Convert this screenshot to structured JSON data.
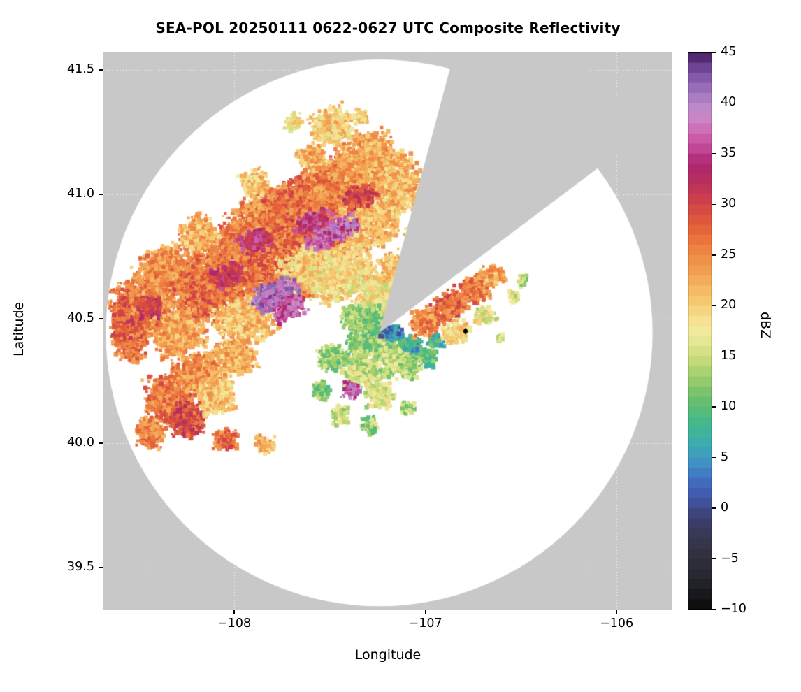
{
  "title": "SEA-POL 20250111 0622-0627 UTC Composite Reflectivity",
  "axes": {
    "xlabel": "Longitude",
    "ylabel": "Latitude",
    "x_ticks": [
      {
        "label": "−108",
        "lon": -108
      },
      {
        "label": "−107",
        "lon": -107
      },
      {
        "label": "−106",
        "lon": -106
      }
    ],
    "y_ticks": [
      {
        "label": "41.5",
        "lat": 41.5
      },
      {
        "label": "41.0",
        "lat": 41.0
      },
      {
        "label": "40.5",
        "lat": 40.5
      },
      {
        "label": "40.0",
        "lat": 40.0
      },
      {
        "label": "39.5",
        "lat": 39.5
      }
    ]
  },
  "colorbar": {
    "label": "dBZ",
    "range": [
      -10,
      45
    ],
    "ticks": [
      {
        "label": "45",
        "value": 45
      },
      {
        "label": "40",
        "value": 40
      },
      {
        "label": "35",
        "value": 35
      },
      {
        "label": "30",
        "value": 30
      },
      {
        "label": "25",
        "value": 25
      },
      {
        "label": "20",
        "value": 20
      },
      {
        "label": "15",
        "value": 15
      },
      {
        "label": "10",
        "value": 10
      },
      {
        "label": "5",
        "value": 5
      },
      {
        "label": "0",
        "value": 0
      },
      {
        "label": "−5",
        "value": -5
      },
      {
        "label": "−10",
        "value": -10
      }
    ],
    "colormap_stops": [
      [
        -10,
        "#0a0a0a"
      ],
      [
        -7,
        "#26262e"
      ],
      [
        -4,
        "#333344"
      ],
      [
        -1,
        "#3c3f6e"
      ],
      [
        1,
        "#4256a8"
      ],
      [
        3,
        "#4173c2"
      ],
      [
        5,
        "#3f9bc4"
      ],
      [
        7,
        "#3cb2a4"
      ],
      [
        9,
        "#4bba81"
      ],
      [
        11,
        "#6fc16b"
      ],
      [
        13,
        "#a0ce6c"
      ],
      [
        15,
        "#cdde7c"
      ],
      [
        17,
        "#edea9d"
      ],
      [
        18,
        "#f4e79a"
      ],
      [
        19,
        "#f6da88"
      ],
      [
        21,
        "#f6c167"
      ],
      [
        23,
        "#f3a556"
      ],
      [
        25,
        "#ef8a45"
      ],
      [
        27,
        "#e96c3a"
      ],
      [
        29,
        "#da4f3d"
      ],
      [
        31,
        "#c63a51"
      ],
      [
        33,
        "#b02a64"
      ],
      [
        34,
        "#ad2570"
      ],
      [
        35,
        "#bd3b8d"
      ],
      [
        37,
        "#cf66b2"
      ],
      [
        39,
        "#c88fcb"
      ],
      [
        41,
        "#a077c0"
      ],
      [
        43,
        "#7b4fa4"
      ],
      [
        45,
        "#451e61"
      ]
    ]
  },
  "chart_data": {
    "type": "heatmap",
    "description": "Radar composite reflectivity PPI on a latitude/longitude map. White disc is the radar coverage circle on a gray background; a gray no-data sector (wedge) extends from the radar center toward the north-northeast. Precipitation echoes (20-43 dBZ band) cover the northwest half of the domain with embedded high-reflectivity streaks; weak green/teal echoes lie near the radar; a secondary echo band extends east-northeast of the radar. A small black diamond marks a site east of the radar.",
    "xlim": [
      -108.684,
      -105.708
    ],
    "ylim": [
      39.331,
      41.57
    ],
    "background_color": "#c8c8c8",
    "coverage_color": "#ffffff",
    "gridline_color": "rgba(255,255,255,0.95)",
    "radar": {
      "lon": -107.2416,
      "lat": 40.443,
      "radius_deg_lon": 1.43
    },
    "missing_sector": {
      "from_azimuth_deg": 15,
      "to_azimuth_deg": 53
    },
    "marker": {
      "lon": -106.79,
      "lat": 40.45,
      "shape": "diamond",
      "color": "#000000"
    },
    "echoes": [
      {
        "lon": -108.5,
        "lat": 40.55,
        "rx": 0.17,
        "ry": 0.13,
        "dbz": 26,
        "ang": 20
      },
      {
        "lon": -108.35,
        "lat": 40.68,
        "rx": 0.18,
        "ry": 0.13,
        "dbz": 24,
        "ang": 20
      },
      {
        "lon": -108.15,
        "lat": 40.62,
        "rx": 0.2,
        "ry": 0.14,
        "dbz": 27,
        "ang": 20
      },
      {
        "lon": -108.0,
        "lat": 40.75,
        "rx": 0.22,
        "ry": 0.15,
        "dbz": 26,
        "ang": 25
      },
      {
        "lon": -107.85,
        "lat": 40.88,
        "rx": 0.22,
        "ry": 0.14,
        "dbz": 25,
        "ang": 25
      },
      {
        "lon": -107.65,
        "lat": 40.95,
        "rx": 0.22,
        "ry": 0.14,
        "dbz": 27,
        "ang": 25
      },
      {
        "lon": -107.45,
        "lat": 41.05,
        "rx": 0.2,
        "ry": 0.13,
        "dbz": 25,
        "ang": 25
      },
      {
        "lon": -107.3,
        "lat": 41.15,
        "rx": 0.17,
        "ry": 0.12,
        "dbz": 23,
        "ang": 25
      },
      {
        "lon": -107.5,
        "lat": 41.28,
        "rx": 0.12,
        "ry": 0.08,
        "dbz": 20,
        "ang": 25
      },
      {
        "lon": -107.15,
        "lat": 41.05,
        "rx": 0.15,
        "ry": 0.12,
        "dbz": 22,
        "ang": 25
      },
      {
        "lon": -107.55,
        "lat": 40.85,
        "rx": 0.25,
        "ry": 0.15,
        "dbz": 26,
        "ang": 25
      },
      {
        "lon": -107.75,
        "lat": 40.7,
        "rx": 0.25,
        "ry": 0.15,
        "dbz": 27,
        "ang": 25
      },
      {
        "lon": -108.3,
        "lat": 40.45,
        "rx": 0.15,
        "ry": 0.1,
        "dbz": 23,
        "ang": 20
      },
      {
        "lon": -108.55,
        "lat": 40.42,
        "rx": 0.1,
        "ry": 0.1,
        "dbz": 26,
        "ang": 0
      },
      {
        "lon": -107.95,
        "lat": 40.5,
        "rx": 0.18,
        "ry": 0.1,
        "dbz": 21,
        "ang": 20
      },
      {
        "lon": -107.6,
        "lat": 40.72,
        "rx": 0.2,
        "ry": 0.1,
        "dbz": 20,
        "ang": 25
      },
      {
        "lon": -107.3,
        "lat": 40.9,
        "rx": 0.18,
        "ry": 0.12,
        "dbz": 21,
        "ang": 25
      },
      {
        "lon": -107.8,
        "lat": 40.6,
        "rx": 0.14,
        "ry": 0.06,
        "dbz": 40,
        "ang": 25
      },
      {
        "lon": -107.72,
        "lat": 40.55,
        "rx": 0.1,
        "ry": 0.05,
        "dbz": 36,
        "ang": 25
      },
      {
        "lon": -107.5,
        "lat": 40.85,
        "rx": 0.16,
        "ry": 0.05,
        "dbz": 37,
        "ang": 25
      },
      {
        "lon": -107.6,
        "lat": 40.9,
        "rx": 0.12,
        "ry": 0.04,
        "dbz": 34,
        "ang": 25
      },
      {
        "lon": -107.9,
        "lat": 40.82,
        "rx": 0.1,
        "ry": 0.05,
        "dbz": 33,
        "ang": 25
      },
      {
        "lon": -108.05,
        "lat": 40.68,
        "rx": 0.1,
        "ry": 0.05,
        "dbz": 32,
        "ang": 20
      },
      {
        "lon": -108.45,
        "lat": 40.55,
        "rx": 0.07,
        "ry": 0.05,
        "dbz": 31,
        "ang": 0
      },
      {
        "lon": -107.35,
        "lat": 41.0,
        "rx": 0.1,
        "ry": 0.05,
        "dbz": 30,
        "ang": 25
      },
      {
        "lon": -108.35,
        "lat": 40.18,
        "rx": 0.14,
        "ry": 0.12,
        "dbz": 26,
        "ang": 10
      },
      {
        "lon": -108.2,
        "lat": 40.28,
        "rx": 0.14,
        "ry": 0.1,
        "dbz": 24,
        "ang": 15
      },
      {
        "lon": -108.45,
        "lat": 40.05,
        "rx": 0.08,
        "ry": 0.07,
        "dbz": 25,
        "ang": 0
      },
      {
        "lon": -108.25,
        "lat": 40.1,
        "rx": 0.1,
        "ry": 0.08,
        "dbz": 29,
        "ang": 10
      },
      {
        "lon": -108.1,
        "lat": 40.2,
        "rx": 0.1,
        "ry": 0.08,
        "dbz": 21,
        "ang": 10
      },
      {
        "lon": -108.05,
        "lat": 40.02,
        "rx": 0.07,
        "ry": 0.05,
        "dbz": 27,
        "ang": 0
      },
      {
        "lon": -107.85,
        "lat": 40.0,
        "rx": 0.06,
        "ry": 0.04,
        "dbz": 22,
        "ang": 0
      },
      {
        "lon": -108.0,
        "lat": 40.35,
        "rx": 0.12,
        "ry": 0.08,
        "dbz": 22,
        "ang": 15
      },
      {
        "lon": -107.3,
        "lat": 40.42,
        "rx": 0.14,
        "ry": 0.1,
        "dbz": 12,
        "ang": 0
      },
      {
        "lon": -107.15,
        "lat": 40.35,
        "rx": 0.13,
        "ry": 0.09,
        "dbz": 14,
        "ang": 0
      },
      {
        "lon": -107.35,
        "lat": 40.3,
        "rx": 0.1,
        "ry": 0.08,
        "dbz": 15,
        "ang": 0
      },
      {
        "lon": -107.5,
        "lat": 40.35,
        "rx": 0.08,
        "ry": 0.06,
        "dbz": 13,
        "ang": 0
      },
      {
        "lon": -107.25,
        "lat": 40.2,
        "rx": 0.08,
        "ry": 0.06,
        "dbz": 16,
        "ang": 0
      },
      {
        "lon": -107.4,
        "lat": 40.22,
        "rx": 0.05,
        "ry": 0.04,
        "dbz": 38,
        "ang": 0
      },
      {
        "lon": -107.45,
        "lat": 40.12,
        "rx": 0.05,
        "ry": 0.04,
        "dbz": 15,
        "ang": 0
      },
      {
        "lon": -107.3,
        "lat": 40.08,
        "rx": 0.05,
        "ry": 0.04,
        "dbz": 13,
        "ang": 0
      },
      {
        "lon": -107.1,
        "lat": 40.15,
        "rx": 0.04,
        "ry": 0.03,
        "dbz": 14,
        "ang": 0
      },
      {
        "lon": -107.55,
        "lat": 40.22,
        "rx": 0.05,
        "ry": 0.04,
        "dbz": 12,
        "ang": 0
      },
      {
        "lon": -107.18,
        "lat": 40.45,
        "rx": 0.07,
        "ry": 0.035,
        "dbz": 4,
        "ang": -15
      },
      {
        "lon": -107.08,
        "lat": 40.4,
        "rx": 0.06,
        "ry": 0.04,
        "dbz": 7,
        "ang": -15
      },
      {
        "lon": -107.0,
        "lat": 40.35,
        "rx": 0.06,
        "ry": 0.04,
        "dbz": 10,
        "ang": -15
      },
      {
        "lon": -106.95,
        "lat": 40.42,
        "rx": 0.05,
        "ry": 0.03,
        "dbz": 8,
        "ang": 0
      },
      {
        "lon": -107.0,
        "lat": 40.5,
        "rx": 0.1,
        "ry": 0.06,
        "dbz": 25,
        "ang": 25
      },
      {
        "lon": -106.88,
        "lat": 40.56,
        "rx": 0.1,
        "ry": 0.06,
        "dbz": 27,
        "ang": 25
      },
      {
        "lon": -106.76,
        "lat": 40.62,
        "rx": 0.09,
        "ry": 0.06,
        "dbz": 26,
        "ang": 25
      },
      {
        "lon": -106.66,
        "lat": 40.68,
        "rx": 0.07,
        "ry": 0.05,
        "dbz": 23,
        "ang": 25
      },
      {
        "lon": -106.85,
        "lat": 40.45,
        "rx": 0.08,
        "ry": 0.05,
        "dbz": 19,
        "ang": 25
      },
      {
        "lon": -106.7,
        "lat": 40.52,
        "rx": 0.06,
        "ry": 0.04,
        "dbz": 17,
        "ang": 25
      },
      {
        "lon": -106.55,
        "lat": 40.6,
        "rx": 0.03,
        "ry": 0.03,
        "dbz": 16,
        "ang": 0
      },
      {
        "lon": -106.5,
        "lat": 40.66,
        "rx": 0.025,
        "ry": 0.025,
        "dbz": 14,
        "ang": 0
      },
      {
        "lon": -106.62,
        "lat": 40.43,
        "rx": 0.02,
        "ry": 0.02,
        "dbz": 15,
        "ang": 0
      },
      {
        "lon": -107.7,
        "lat": 41.3,
        "rx": 0.05,
        "ry": 0.04,
        "dbz": 18,
        "ang": 0
      },
      {
        "lon": -107.35,
        "lat": 41.32,
        "rx": 0.04,
        "ry": 0.035,
        "dbz": 20,
        "ang": 0
      },
      {
        "lon": -107.6,
        "lat": 41.15,
        "rx": 0.08,
        "ry": 0.06,
        "dbz": 22,
        "ang": 25
      },
      {
        "lon": -107.9,
        "lat": 41.05,
        "rx": 0.08,
        "ry": 0.06,
        "dbz": 21,
        "ang": 25
      },
      {
        "lon": -108.2,
        "lat": 40.85,
        "rx": 0.1,
        "ry": 0.08,
        "dbz": 22,
        "ang": 20
      },
      {
        "lon": -108.6,
        "lat": 40.5,
        "rx": 0.06,
        "ry": 0.1,
        "dbz": 28,
        "ang": 0
      },
      {
        "lon": -107.45,
        "lat": 40.68,
        "rx": 0.2,
        "ry": 0.1,
        "dbz": 19,
        "ang": 20
      },
      {
        "lon": -107.25,
        "lat": 40.6,
        "rx": 0.15,
        "ry": 0.1,
        "dbz": 18,
        "ang": 20
      },
      {
        "lon": -107.15,
        "lat": 40.7,
        "rx": 0.1,
        "ry": 0.09,
        "dbz": 21,
        "ang": 25
      },
      {
        "lon": -107.38,
        "lat": 40.52,
        "rx": 0.08,
        "ry": 0.05,
        "dbz": 13,
        "ang": 20
      },
      {
        "lon": -107.3,
        "lat": 40.52,
        "rx": 0.08,
        "ry": 0.05,
        "dbz": 12,
        "ang": 0
      }
    ]
  }
}
